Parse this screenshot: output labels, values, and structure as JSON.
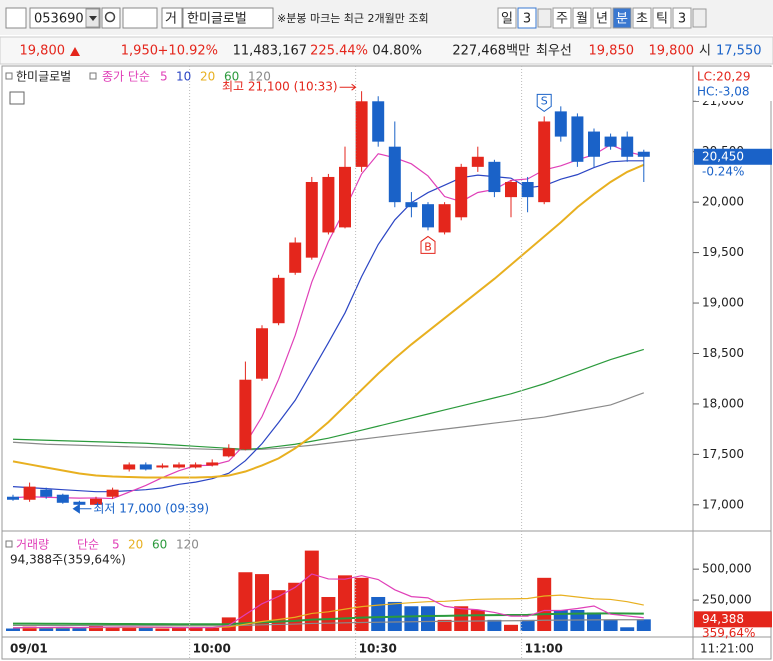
{
  "toolbar": {
    "code": "053690",
    "market": "거",
    "name": "한미글로벌",
    "notice": "※분봉 마크는 최근 2개월만 조회",
    "periods": [
      "일",
      "3",
      "주",
      "월",
      "년",
      "분",
      "초",
      "틱",
      "3"
    ]
  },
  "quote": {
    "price": "19,800",
    "change": "1,950",
    "change_pct": "+10.92%",
    "volume": "11,483,167",
    "volume_ratio": "225.44%",
    "turnover": "04.80%",
    "amount": "227,468백만",
    "best_label": "최우선",
    "ask": "19,850",
    "bid": "19,800",
    "open_label": "시",
    "open": "17,550"
  },
  "chart_data": [
    {
      "type": "candlestick",
      "title": "한미글로벌",
      "legend_title": "종가 단순",
      "categories": [
        "09/01",
        null,
        null,
        null,
        null,
        null,
        null,
        null,
        null,
        null,
        null,
        "10:00",
        null,
        null,
        null,
        null,
        null,
        null,
        null,
        null,
        null,
        "10:30",
        null,
        null,
        null,
        null,
        null,
        null,
        null,
        null,
        null,
        "11:00",
        null,
        null,
        null,
        null,
        null,
        null,
        null
      ],
      "open": [
        17080,
        17050,
        17150,
        17100,
        17030,
        17000,
        17080,
        17350,
        17400,
        17370,
        17370,
        17370,
        17390,
        17480,
        17550,
        18250,
        18800,
        19300,
        19450,
        19700,
        19750,
        20350,
        21000,
        20550,
        20000,
        19980,
        19700,
        19850,
        20350,
        20400,
        20050,
        20200,
        20000,
        20900,
        20850,
        20700,
        20650,
        20650,
        20500
      ],
      "high": [
        17100,
        17220,
        17170,
        17110,
        17040,
        17080,
        17170,
        17420,
        17420,
        17410,
        17420,
        17420,
        17450,
        17600,
        18420,
        18780,
        19280,
        19650,
        20250,
        20280,
        20550,
        21100,
        21050,
        20800,
        20100,
        20000,
        20000,
        20380,
        20550,
        20420,
        20220,
        20250,
        20850,
        20950,
        20880,
        20730,
        20680,
        20700,
        20520
      ],
      "low": [
        17040,
        17030,
        17060,
        17010,
        17000,
        17000,
        17060,
        17330,
        17340,
        17360,
        17360,
        17360,
        17380,
        17470,
        17540,
        18230,
        18780,
        19280,
        19430,
        19680,
        19740,
        20300,
        20550,
        19950,
        19850,
        19720,
        19680,
        19820,
        20300,
        20050,
        19850,
        19900,
        19980,
        20600,
        20350,
        20350,
        20520,
        20400,
        20200
      ],
      "close": [
        17050,
        17180,
        17080,
        17020,
        17000,
        17060,
        17150,
        17400,
        17350,
        17390,
        17400,
        17400,
        17420,
        17560,
        18240,
        18750,
        19250,
        19600,
        20200,
        20250,
        20350,
        21000,
        20600,
        20000,
        19950,
        19750,
        19980,
        20350,
        20450,
        20100,
        20200,
        20050,
        20800,
        20650,
        20400,
        20450,
        20550,
        20450,
        20450
      ],
      "up_color": "#e4261c",
      "down_color": "#1a62c8",
      "series": [
        {
          "name": "5",
          "color": "#e040b8",
          "values": [
            17070,
            17080,
            17075,
            17070,
            17066,
            17068,
            17062,
            17126,
            17192,
            17270,
            17338,
            17388,
            17392,
            17434,
            17604,
            17874,
            18244,
            18680,
            19208,
            19610,
            19930,
            20280,
            20480,
            20440,
            20380,
            20260,
            20056,
            20006,
            20096,
            20126,
            20216,
            20230,
            20320,
            20360,
            20420,
            20470,
            20570,
            20500,
            20460
          ]
        },
        {
          "name": "10",
          "color": "#2c46c4",
          "values": [
            17180,
            17170,
            17160,
            17150,
            17140,
            17130,
            17130,
            17140,
            17150,
            17168,
            17203,
            17225,
            17259,
            17313,
            17437,
            17606,
            17816,
            18036,
            18321,
            18607,
            18902,
            19262,
            19580,
            19824,
            19995,
            20095,
            20168,
            20243,
            20268,
            20253,
            20238,
            20143,
            20163,
            20228,
            20273,
            20343,
            20400,
            20410,
            20410
          ]
        },
        {
          "name": "20",
          "color": "#e8b020",
          "values": [
            17430,
            17400,
            17370,
            17340,
            17310,
            17290,
            17280,
            17275,
            17270,
            17270,
            17270,
            17270,
            17275,
            17290,
            17330,
            17390,
            17460,
            17560,
            17680,
            17820,
            17980,
            18140,
            18300,
            18450,
            18590,
            18720,
            18850,
            18980,
            19110,
            19240,
            19380,
            19520,
            19660,
            19800,
            19950,
            20080,
            20200,
            20300,
            20370
          ]
        },
        {
          "name": "60",
          "color": "#2b9a3c",
          "values": [
            17650,
            17645,
            17640,
            17635,
            17630,
            17625,
            17620,
            17615,
            17610,
            17600,
            17590,
            17580,
            17570,
            17560,
            17550,
            17560,
            17580,
            17600,
            17630,
            17660,
            17700,
            17740,
            17780,
            17820,
            17860,
            17900,
            17940,
            17980,
            18020,
            18060,
            18100,
            18150,
            18200,
            18260,
            18320,
            18380,
            18440,
            18490,
            18540
          ]
        },
        {
          "name": "120",
          "color": "#8a8a8a",
          "values": [
            17620,
            17610,
            17600,
            17595,
            17590,
            17585,
            17580,
            17575,
            17570,
            17565,
            17560,
            17555,
            17550,
            17545,
            17545,
            17550,
            17560,
            17575,
            17590,
            17610,
            17630,
            17650,
            17670,
            17690,
            17710,
            17730,
            17750,
            17770,
            17790,
            17810,
            17830,
            17850,
            17870,
            17900,
            17930,
            17960,
            17990,
            18050,
            18110
          ]
        }
      ],
      "ylim": [
        16770,
        21330
      ],
      "yticks": [
        {
          "value": 17000,
          "label": "17,000"
        },
        {
          "value": 17500,
          "label": "17,500"
        },
        {
          "value": 18000,
          "label": "18,000"
        },
        {
          "value": 18500,
          "label": "18,500"
        },
        {
          "value": 19000,
          "label": "19,000"
        },
        {
          "value": 19500,
          "label": "19,500"
        },
        {
          "value": 20000,
          "label": "20,000"
        },
        {
          "value": 20500,
          "label": "20,500"
        },
        {
          "value": 21000,
          "label": "21,000"
        }
      ],
      "annotations": {
        "high": "최고 21,100 (10:33)",
        "low": "최저 17,000 (09:39)"
      },
      "trade_marks": [
        "S",
        "B"
      ],
      "right_labels": {
        "lc": "LC:20,29",
        "hc": "HC:-3,08",
        "last": "20,450",
        "last_change": "-0.24%"
      },
      "time_label": "11:21:00"
    },
    {
      "type": "bar",
      "title": "거래량",
      "legend_title": "단순",
      "value_label": "94,388주(359,64%)",
      "last_label": "94,388",
      "last_pct": "359,64%",
      "values": [
        20000,
        35000,
        25000,
        30000,
        25000,
        40000,
        30000,
        35000,
        25000,
        20000,
        25000,
        30000,
        25000,
        110000,
        475000,
        460000,
        330000,
        390000,
        650000,
        275000,
        450000,
        430000,
        275000,
        235000,
        200000,
        200000,
        90000,
        200000,
        170000,
        90000,
        50000,
        90000,
        430000,
        170000,
        170000,
        150000,
        90000,
        30000,
        94388
      ],
      "series": [
        {
          "name": "5",
          "color": "#e040b8",
          "values": [
            25000,
            28000,
            28000,
            30000,
            27000,
            31000,
            30000,
            32000,
            31000,
            30000,
            27000,
            27000,
            27000,
            45000,
            133000,
            220000,
            280000,
            353000,
            461000,
            421000,
            419000,
            447000,
            416000,
            333000,
            278000,
            268000,
            200000,
            181000,
            172000,
            150000,
            120000,
            120000,
            166000,
            166000,
            182000,
            202000,
            136000,
            122000,
            107000
          ]
        },
        {
          "name": "20",
          "color": "#e8b020",
          "values": [
            25000,
            25000,
            26000,
            26000,
            27000,
            27000,
            28000,
            28000,
            28000,
            28000,
            28000,
            29000,
            29000,
            33000,
            55000,
            77000,
            93000,
            111000,
            142000,
            155000,
            177000,
            197000,
            209000,
            220000,
            229000,
            237000,
            240000,
            249000,
            256000,
            259000,
            260000,
            263000,
            283000,
            290000,
            275000,
            260000,
            255000,
            237000,
            210000
          ]
        },
        {
          "name": "60",
          "color": "#2b9a3c",
          "values": [
            60000,
            60000,
            59000,
            59000,
            58000,
            58000,
            57000,
            57000,
            56000,
            56000,
            55000,
            55000,
            55000,
            56000,
            63000,
            70000,
            76000,
            82000,
            92000,
            96000,
            102000,
            108000,
            112000,
            115000,
            118000,
            121000,
            122000,
            125000,
            127000,
            128000,
            129000,
            130000,
            136000,
            138000,
            140000,
            141000,
            142000,
            141000,
            140000
          ]
        },
        {
          "name": "120",
          "color": "#8a8a8a",
          "values": [
            45000,
            45000,
            45000,
            44000,
            44000,
            44000,
            43000,
            43000,
            43000,
            43000,
            42000,
            42000,
            42000,
            43000,
            46000,
            50000,
            53000,
            56000,
            61000,
            63000,
            66000,
            69000,
            71000,
            73000,
            75000,
            77000,
            78000,
            79000,
            81000,
            82000,
            83000,
            84000,
            87000,
            88000,
            89000,
            90000,
            91000,
            91000,
            91000
          ]
        }
      ],
      "ylim": [
        0,
        760000
      ],
      "yticks": [
        {
          "value": 250000,
          "label": "250,000"
        },
        {
          "value": 500000,
          "label": "500,000"
        }
      ]
    }
  ]
}
